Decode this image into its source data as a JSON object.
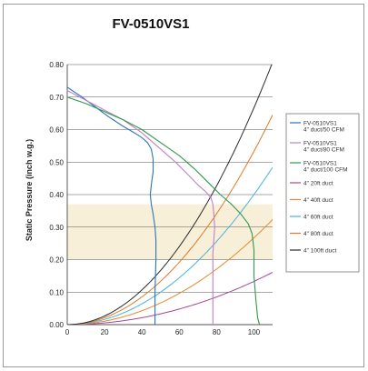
{
  "chart_data": {
    "type": "line",
    "title": "FV-0510VS1",
    "xlabel": "",
    "ylabel": "Static Pressure (inch w.g.)",
    "xlim": [
      0,
      110
    ],
    "ylim": [
      0,
      0.8
    ],
    "xticks": [
      "0",
      "20",
      "40",
      "60",
      "80",
      "100"
    ],
    "yticks": [
      "0.00",
      "0.10",
      "0.20",
      "0.30",
      "0.40",
      "0.50",
      "0.60",
      "0.70",
      "0.80"
    ],
    "grid": "horizontal",
    "legend_position": "right",
    "band": {
      "y_from": 0.2,
      "y_to": 0.37,
      "color": "#f7efd8"
    },
    "fan_series": [
      {
        "name": "FV-0510VS1\n4\" duct/50 CFM",
        "color": "#2b73b8",
        "points": [
          [
            0,
            0.73
          ],
          [
            8,
            0.7
          ],
          [
            15,
            0.67
          ],
          [
            22,
            0.64
          ],
          [
            30,
            0.61
          ],
          [
            36,
            0.59
          ],
          [
            40,
            0.575
          ],
          [
            43,
            0.56
          ],
          [
            45,
            0.54
          ],
          [
            46,
            0.51
          ],
          [
            46,
            0.47
          ],
          [
            45,
            0.43
          ],
          [
            44.5,
            0.4
          ],
          [
            45,
            0.37
          ],
          [
            46,
            0.34
          ],
          [
            47,
            0.3
          ],
          [
            47.5,
            0.26
          ],
          [
            47.5,
            0.2
          ],
          [
            47,
            0.1
          ],
          [
            47,
            0.0
          ]
        ]
      },
      {
        "name": "FV-0510VS1\n4\" duct/80 CFM",
        "color": "#c47fc4",
        "points": [
          [
            0,
            0.72
          ],
          [
            10,
            0.69
          ],
          [
            20,
            0.66
          ],
          [
            30,
            0.63
          ],
          [
            40,
            0.59
          ],
          [
            50,
            0.54
          ],
          [
            58,
            0.5
          ],
          [
            65,
            0.46
          ],
          [
            70,
            0.43
          ],
          [
            74,
            0.41
          ],
          [
            77,
            0.39
          ],
          [
            78,
            0.37
          ],
          [
            78.5,
            0.34
          ],
          [
            79,
            0.3
          ],
          [
            78.5,
            0.26
          ],
          [
            78,
            0.22
          ],
          [
            78,
            0.15
          ],
          [
            78,
            0.08
          ],
          [
            78,
            0.0
          ]
        ]
      },
      {
        "name": "FV-0510VS1\n4\" duct/100 CFM",
        "color": "#2e9a4b",
        "points": [
          [
            0,
            0.7
          ],
          [
            10,
            0.68
          ],
          [
            20,
            0.655
          ],
          [
            30,
            0.63
          ],
          [
            40,
            0.6
          ],
          [
            50,
            0.56
          ],
          [
            60,
            0.52
          ],
          [
            68,
            0.48
          ],
          [
            75,
            0.44
          ],
          [
            82,
            0.4
          ],
          [
            88,
            0.37
          ],
          [
            93,
            0.34
          ],
          [
            97,
            0.31
          ],
          [
            99,
            0.28
          ],
          [
            100,
            0.23
          ],
          [
            100,
            0.15
          ],
          [
            101,
            0.08
          ],
          [
            102,
            0.02
          ],
          [
            103,
            0.0
          ]
        ]
      }
    ],
    "duct_series": [
      {
        "name": "4\" 20ft duct",
        "color": "#a7469a",
        "k": 1.33e-05
      },
      {
        "name": "4\" 40ft duct",
        "color": "#e58a2d",
        "k": 2.67e-05
      },
      {
        "name": "4\" 60ft duct",
        "color": "#47b3dc",
        "k": 4e-05
      },
      {
        "name": "4\" 80ft duct",
        "color": "#e07a24",
        "k": 5.33e-05
      },
      {
        "name": "4\" 100ft duct",
        "color": "#2a2a2a",
        "k": 6.67e-05
      }
    ]
  }
}
